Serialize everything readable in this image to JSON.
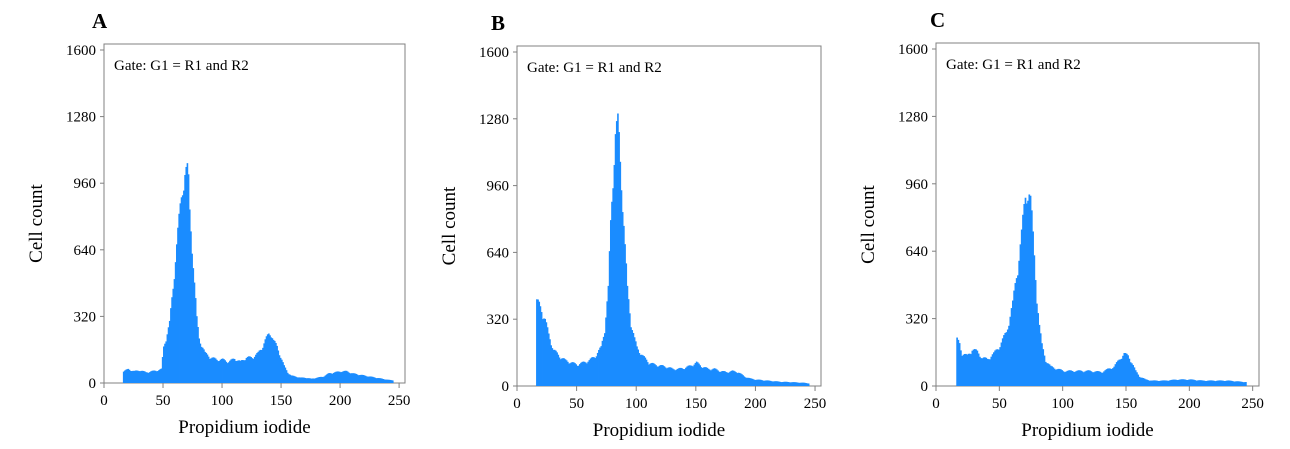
{
  "chart_data": [
    {
      "type": "bar",
      "panel_label": "A",
      "annotation": "Gate: G1 = R1 and R2",
      "xlabel": "Propidium iodide",
      "ylabel": "Cell count",
      "xlim": [
        0,
        255
      ],
      "ylim": [
        0,
        1600
      ],
      "xticks": [
        "0",
        "50",
        "100",
        "150",
        "200",
        "250"
      ],
      "yticks": [
        "0",
        "320",
        "640",
        "960",
        "1280",
        "1600"
      ],
      "color": "#1a8cff",
      "x": [
        16,
        20,
        25,
        30,
        35,
        40,
        45,
        48,
        50,
        55,
        58,
        60,
        63,
        65,
        67,
        68,
        70,
        71,
        72,
        74,
        76,
        78,
        80,
        85,
        90,
        95,
        100,
        105,
        110,
        115,
        120,
        125,
        130,
        133,
        136,
        139,
        141,
        143,
        146,
        149,
        152,
        155,
        158,
        162,
        166,
        170,
        175,
        180,
        185,
        190,
        195,
        200,
        205,
        210,
        215,
        220,
        225,
        230,
        235,
        240,
        245
      ],
      "values": [
        55,
        65,
        55,
        60,
        50,
        55,
        60,
        65,
        170,
        280,
        450,
        600,
        760,
        870,
        980,
        1000,
        990,
        940,
        800,
        660,
        470,
        300,
        210,
        140,
        120,
        110,
        110,
        100,
        115,
        100,
        120,
        120,
        140,
        165,
        200,
        230,
        235,
        200,
        170,
        125,
        80,
        50,
        35,
        30,
        25,
        25,
        20,
        25,
        30,
        45,
        50,
        55,
        55,
        45,
        40,
        35,
        30,
        25,
        20,
        15,
        12
      ]
    },
    {
      "type": "bar",
      "panel_label": "B",
      "annotation": "Gate: G1 = R1 and R2",
      "xlabel": "Propidium iodide",
      "ylabel": "Cell count",
      "xlim": [
        0,
        255
      ],
      "ylim": [
        0,
        1600
      ],
      "xticks": [
        "0",
        "50",
        "100",
        "150",
        "200",
        "250"
      ],
      "yticks": [
        "0",
        "320",
        "640",
        "960",
        "1280",
        "1600"
      ],
      "color": "#1a8cff",
      "x": [
        16,
        18,
        20,
        23,
        26,
        30,
        35,
        40,
        45,
        50,
        55,
        60,
        65,
        70,
        73,
        76,
        78,
        80,
        82,
        83,
        84,
        85,
        86,
        88,
        90,
        92,
        95,
        98,
        100,
        105,
        110,
        115,
        120,
        125,
        130,
        135,
        140,
        145,
        150,
        155,
        160,
        165,
        170,
        175,
        180,
        185,
        190,
        195,
        200,
        210,
        220,
        230,
        240,
        245
      ],
      "values": [
        395,
        380,
        360,
        310,
        240,
        170,
        140,
        120,
        110,
        100,
        110,
        120,
        140,
        180,
        270,
        450,
        760,
        1000,
        1180,
        1200,
        1220,
        1150,
        1050,
        880,
        650,
        450,
        300,
        220,
        180,
        140,
        110,
        100,
        95,
        90,
        80,
        80,
        85,
        95,
        110,
        90,
        80,
        80,
        70,
        65,
        70,
        65,
        45,
        35,
        30,
        25,
        20,
        18,
        15,
        12
      ]
    },
    {
      "type": "bar",
      "panel_label": "C",
      "annotation": "Gate: G1 = R1 and R2",
      "xlabel": "Propidium iodide",
      "ylabel": "Cell count",
      "xlim": [
        0,
        255
      ],
      "ylim": [
        0,
        1600
      ],
      "xticks": [
        "0",
        "50",
        "100",
        "150",
        "200",
        "250"
      ],
      "yticks": [
        "0",
        "320",
        "640",
        "960",
        "1280",
        "1600"
      ],
      "color": "#1a8cff",
      "x": [
        16,
        18,
        20,
        24,
        28,
        32,
        36,
        40,
        45,
        50,
        55,
        60,
        64,
        67,
        70,
        72,
        73,
        74,
        75,
        77,
        79,
        81,
        83,
        86,
        90,
        95,
        100,
        110,
        120,
        130,
        140,
        145,
        148,
        151,
        154,
        157,
        160,
        165,
        170,
        180,
        190,
        200,
        210,
        220,
        230,
        240,
        245
      ],
      "values": [
        215,
        200,
        150,
        140,
        170,
        160,
        130,
        125,
        150,
        190,
        250,
        380,
        560,
        700,
        880,
        920,
        900,
        860,
        780,
        600,
        420,
        280,
        190,
        120,
        90,
        80,
        70,
        70,
        70,
        65,
        90,
        130,
        150,
        140,
        110,
        70,
        45,
        30,
        25,
        25,
        30,
        30,
        25,
        25,
        25,
        20,
        18
      ]
    }
  ]
}
